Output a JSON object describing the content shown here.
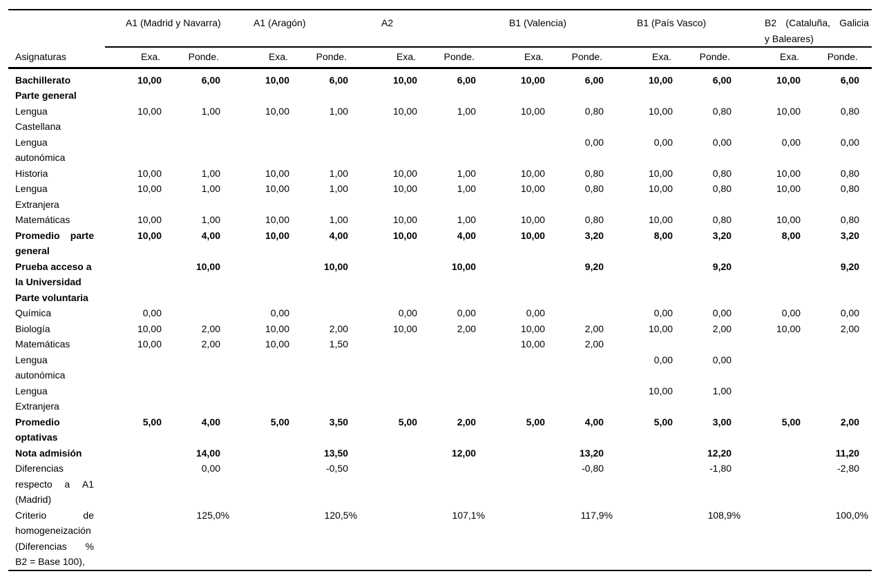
{
  "table": {
    "row_label_header": "Asignaturas",
    "col_subheaders": {
      "exa": "Exa.",
      "ponde": "Ponde."
    },
    "groups": [
      {
        "lines": [
          {
            "t": "A1 (Madrid y Navarra)"
          }
        ]
      },
      {
        "lines": [
          {
            "t": "A1 (Aragón)"
          }
        ]
      },
      {
        "lines": [
          {
            "t": "A2"
          }
        ]
      },
      {
        "lines": [
          {
            "t": "B1 (Valencia)"
          }
        ]
      },
      {
        "lines": [
          {
            "t": "B1 (País Vasco)"
          }
        ]
      },
      {
        "lines": [
          {
            "t": "B2 (Cataluña, Galicia",
            "j": true
          },
          {
            "t": "y Baleares)"
          }
        ]
      }
    ],
    "rows": [
      {
        "bold": true,
        "lines": [
          {
            "t": "Bachillerato"
          },
          {
            "t": "Parte general"
          }
        ],
        "cells": [
          "10,00",
          "6,00",
          "10,00",
          "6,00",
          "10,00",
          "6,00",
          "10,00",
          "6,00",
          "10,00",
          "6,00",
          "10,00",
          "6,00"
        ]
      },
      {
        "lines": [
          {
            "t": "Lengua"
          },
          {
            "t": "Castellana"
          }
        ],
        "cells": [
          "10,00",
          "1,00",
          "10,00",
          "1,00",
          "10,00",
          "1,00",
          "10,00",
          "0,80",
          "10,00",
          "0,80",
          "10,00",
          "0,80"
        ]
      },
      {
        "lines": [
          {
            "t": "Lengua"
          },
          {
            "t": "autonómica"
          }
        ],
        "cells": [
          "",
          "",
          "",
          "",
          "",
          "",
          "",
          "0,00",
          "0,00",
          "0,00",
          "0,00",
          "0,00"
        ]
      },
      {
        "lines": [
          {
            "t": "Historia"
          }
        ],
        "cells": [
          "10,00",
          "1,00",
          "10,00",
          "1,00",
          "10,00",
          "1,00",
          "10,00",
          "0,80",
          "10,00",
          "0,80",
          "10,00",
          "0,80"
        ]
      },
      {
        "lines": [
          {
            "t": "Lengua"
          },
          {
            "t": "Extranjera"
          }
        ],
        "cells": [
          "10,00",
          "1,00",
          "10,00",
          "1,00",
          "10,00",
          "1,00",
          "10,00",
          "0,80",
          "10,00",
          "0,80",
          "10,00",
          "0,80"
        ]
      },
      {
        "lines": [
          {
            "t": "Matemáticas"
          }
        ],
        "cells": [
          "10,00",
          "1,00",
          "10,00",
          "1,00",
          "10,00",
          "1,00",
          "10,00",
          "0,80",
          "10,00",
          "0,80",
          "10,00",
          "0,80"
        ]
      },
      {
        "bold": true,
        "lines": [
          {
            "t": "Promedio parte",
            "j": true
          },
          {
            "t": "general"
          }
        ],
        "cells": [
          "10,00",
          "4,00",
          "10,00",
          "4,00",
          "10,00",
          "4,00",
          "10,00",
          "3,20",
          "8,00",
          "3,20",
          "8,00",
          "3,20"
        ]
      },
      {
        "bold": true,
        "lines": [
          {
            "t": "Prueba acceso a"
          },
          {
            "t": "la Universidad"
          }
        ],
        "cells": [
          "",
          "10,00",
          "",
          "10,00",
          "",
          "10,00",
          "",
          "9,20",
          "",
          "9,20",
          "",
          "9,20"
        ]
      },
      {
        "bold": true,
        "lines": [
          {
            "t": "Parte voluntaria"
          }
        ],
        "cells": [
          "",
          "",
          "",
          "",
          "",
          "",
          "",
          "",
          "",
          "",
          "",
          ""
        ]
      },
      {
        "lines": [
          {
            "t": "Química"
          }
        ],
        "cells": [
          "0,00",
          "",
          "0,00",
          "",
          "0,00",
          "0,00",
          "0,00",
          "",
          "0,00",
          "0,00",
          "0,00",
          "0,00"
        ]
      },
      {
        "lines": [
          {
            "t": "Biología"
          }
        ],
        "cells": [
          "10,00",
          "2,00",
          "10,00",
          "2,00",
          "10,00",
          "2,00",
          "10,00",
          "2,00",
          "10,00",
          "2,00",
          "10,00",
          "2,00"
        ]
      },
      {
        "lines": [
          {
            "t": "Matemáticas"
          }
        ],
        "cells": [
          "10,00",
          "2,00",
          "10,00",
          "1,50",
          "",
          "",
          "10,00",
          "2,00",
          "",
          "",
          "",
          ""
        ]
      },
      {
        "lines": [
          {
            "t": "Lengua"
          },
          {
            "t": "autonómica"
          }
        ],
        "cells": [
          "",
          "",
          "",
          "",
          "",
          "",
          "",
          "",
          "0,00",
          "0,00",
          "",
          ""
        ]
      },
      {
        "lines": [
          {
            "t": "Lengua"
          },
          {
            "t": "Extranjera"
          }
        ],
        "cells": [
          "",
          "",
          "",
          "",
          "",
          "",
          "",
          "",
          "10,00",
          "1,00",
          "",
          ""
        ]
      },
      {
        "bold": true,
        "lines": [
          {
            "t": "Promedio"
          },
          {
            "t": "optativas"
          }
        ],
        "cells": [
          "5,00",
          "4,00",
          "5,00",
          "3,50",
          "5,00",
          "2,00",
          "5,00",
          "4,00",
          "5,00",
          "3,00",
          "5,00",
          "2,00"
        ]
      },
      {
        "bold": true,
        "lines": [
          {
            "t": "Nota admisión"
          }
        ],
        "cells": [
          "",
          "14,00",
          "",
          "13,50",
          "",
          "12,00",
          "",
          "13,20",
          "",
          "12,20",
          "",
          "11,20"
        ]
      },
      {
        "lines": [
          {
            "t": "Diferencias"
          },
          {
            "t": "respecto a A1",
            "j": true
          },
          {
            "t": "(Madrid)"
          }
        ],
        "cells": [
          "",
          "0,00",
          "",
          "-0,50",
          "",
          "",
          "",
          "-0,80",
          "",
          "-1,80",
          "",
          "-2,80"
        ]
      },
      {
        "pct": true,
        "lines": [
          {
            "t": "Criterio de",
            "j": true
          },
          {
            "t": "homogeneización"
          },
          {
            "t": "(Diferencias %",
            "j": true
          },
          {
            "t": "B2 = Base 100),"
          }
        ],
        "cells": [
          "",
          "125,0%",
          "",
          "120,5%",
          "",
          "107,1%",
          "",
          "117,9%",
          "",
          "108,9%",
          "",
          "100,0%"
        ]
      }
    ]
  }
}
